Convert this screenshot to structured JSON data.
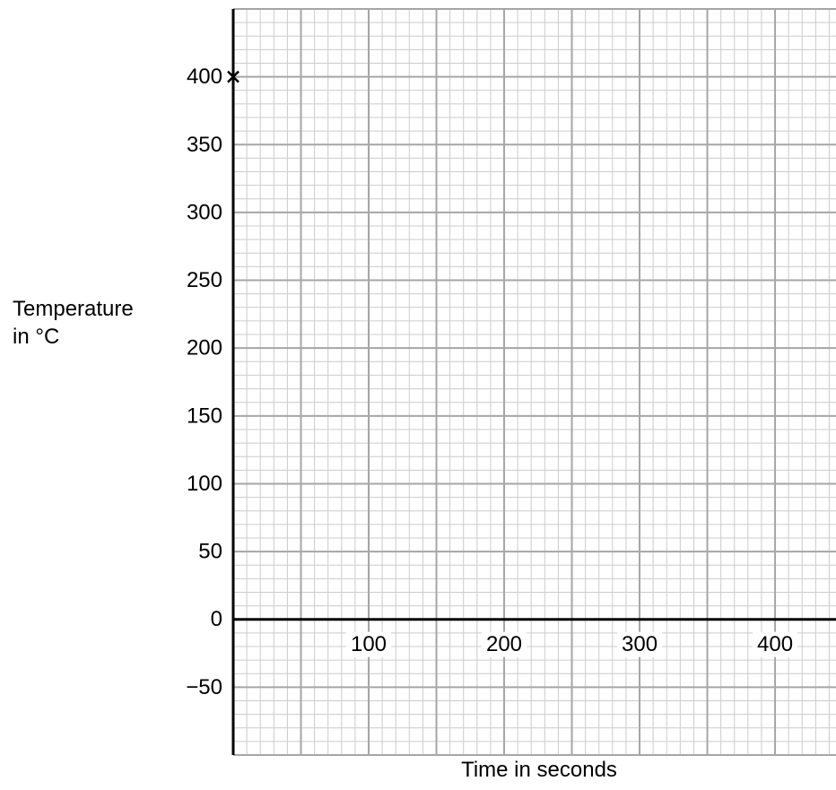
{
  "chart_data": {
    "type": "scatter",
    "xlabel": "Time in seconds",
    "ylabel_lines": [
      "Temperature",
      "in °C"
    ],
    "xlim": [
      0,
      445
    ],
    "ylim": [
      -100,
      450
    ],
    "x_ticks": [
      100,
      200,
      300,
      400
    ],
    "x_tick_labels": [
      "100",
      "200",
      "300",
      "400"
    ],
    "y_ticks": [
      -50,
      0,
      50,
      100,
      150,
      200,
      250,
      300,
      350,
      400
    ],
    "y_tick_labels": [
      "−50",
      "0",
      "50",
      "100",
      "150",
      "200",
      "250",
      "300",
      "350",
      "400"
    ],
    "grid": true,
    "grid_major": 50,
    "grid_minor": 10,
    "points": [
      {
        "x": 0,
        "y": 400,
        "marker": "x"
      }
    ],
    "colors": {
      "axis": "#000000",
      "major_grid": "#a6a6a6",
      "minor_grid": "#cccccc",
      "marker": "#000000"
    }
  }
}
